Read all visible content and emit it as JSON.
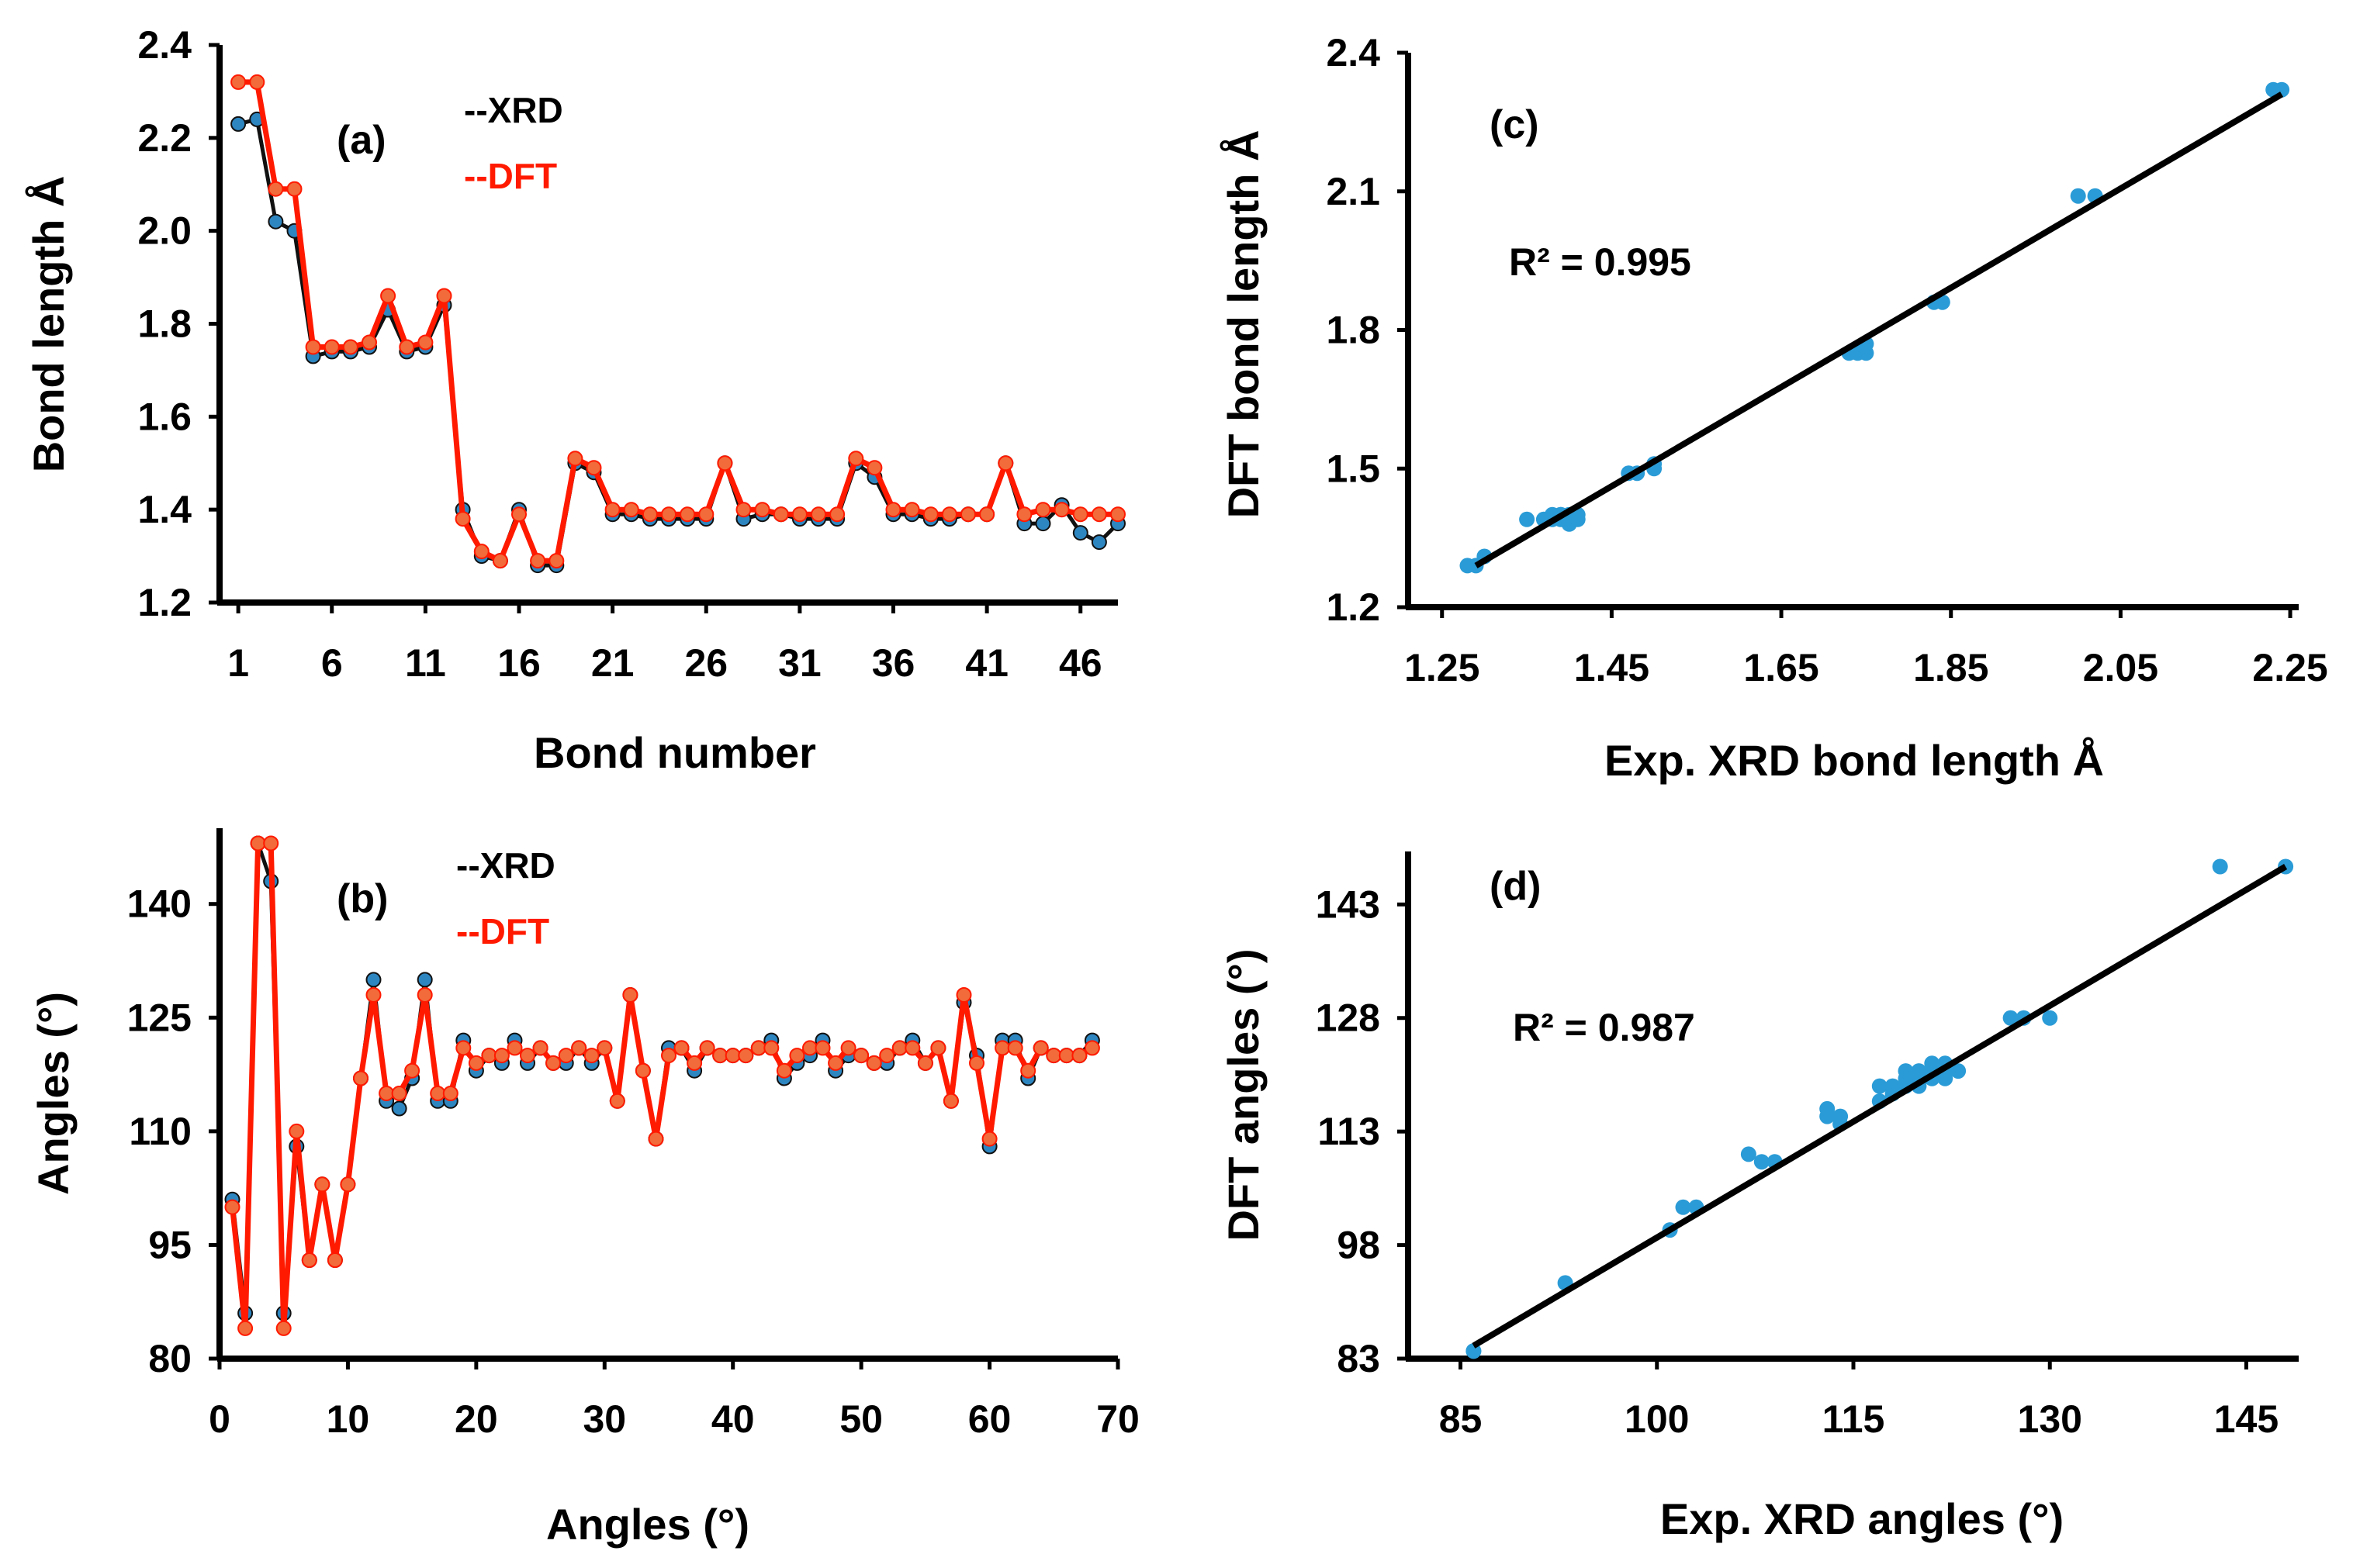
{
  "colors": {
    "xrd": "#111111",
    "dft": "#ff1a00",
    "marker_xrd": "#2e86c1",
    "marker_dft": "#f26b3a",
    "scatter": "#2a9bd6",
    "fit": "#000000"
  },
  "chart_data": [
    {
      "id": "a",
      "type": "line",
      "panel_label": "(a)",
      "xlabel": "Bond number",
      "ylabel": "Bond length Å",
      "ylim": [
        1.2,
        2.4
      ],
      "yticks": [
        "1.2",
        "1.4",
        "1.6",
        "1.8",
        "2.0",
        "2.2",
        "2.4"
      ],
      "xlim": [
        0,
        48
      ],
      "xticks": [
        "1",
        "6",
        "11",
        "16",
        "21",
        "26",
        "31",
        "36",
        "41",
        "46"
      ],
      "legend": [
        "--XRD",
        "--DFT"
      ],
      "series": [
        {
          "name": "XRD",
          "x": [
            1,
            2,
            3,
            4,
            5,
            6,
            7,
            8,
            9,
            10,
            11,
            12,
            13,
            14,
            15,
            16,
            17,
            18,
            19,
            20,
            21,
            22,
            23,
            24,
            25,
            26,
            27,
            28,
            29,
            30,
            31,
            32,
            33,
            34,
            35,
            36,
            37,
            38,
            39,
            40,
            41,
            42,
            43,
            44,
            45,
            46,
            47,
            48
          ],
          "values": [
            2.23,
            2.24,
            2.02,
            2.0,
            1.73,
            1.74,
            1.74,
            1.75,
            1.83,
            1.74,
            1.75,
            1.84,
            1.4,
            1.3,
            1.29,
            1.4,
            1.28,
            1.28,
            1.5,
            1.48,
            1.39,
            1.39,
            1.38,
            1.38,
            1.38,
            1.38,
            1.5,
            1.38,
            1.39,
            1.39,
            1.38,
            1.38,
            1.38,
            1.5,
            1.47,
            1.39,
            1.39,
            1.38,
            1.38,
            1.39,
            1.39,
            1.5,
            1.37,
            1.37,
            1.41,
            1.35,
            1.33,
            1.37
          ]
        },
        {
          "name": "DFT",
          "x": [
            1,
            2,
            3,
            4,
            5,
            6,
            7,
            8,
            9,
            10,
            11,
            12,
            13,
            14,
            15,
            16,
            17,
            18,
            19,
            20,
            21,
            22,
            23,
            24,
            25,
            26,
            27,
            28,
            29,
            30,
            31,
            32,
            33,
            34,
            35,
            36,
            37,
            38,
            39,
            40,
            41,
            42,
            43,
            44,
            45,
            46,
            47,
            48
          ],
          "values": [
            2.32,
            2.32,
            2.09,
            2.09,
            1.75,
            1.75,
            1.75,
            1.76,
            1.86,
            1.75,
            1.76,
            1.86,
            1.38,
            1.31,
            1.29,
            1.39,
            1.29,
            1.29,
            1.51,
            1.49,
            1.4,
            1.4,
            1.39,
            1.39,
            1.39,
            1.39,
            1.5,
            1.4,
            1.4,
            1.39,
            1.39,
            1.39,
            1.39,
            1.51,
            1.49,
            1.4,
            1.4,
            1.39,
            1.39,
            1.39,
            1.39,
            1.5,
            1.39,
            1.4,
            1.4,
            1.39,
            1.39,
            1.39
          ]
        }
      ]
    },
    {
      "id": "b",
      "type": "line",
      "panel_label": "(b)",
      "xlabel": "Angles (°)",
      "ylabel": "Angles (°)",
      "ylim": [
        80,
        150
      ],
      "yticks": [
        "80",
        "95",
        "110",
        "125",
        "140"
      ],
      "xlim": [
        0,
        70
      ],
      "xticks": [
        "0",
        "10",
        "20",
        "30",
        "40",
        "50",
        "60",
        "70"
      ],
      "legend": [
        "--XRD",
        "--DFT"
      ],
      "series": [
        {
          "name": "XRD",
          "x": [
            1,
            2,
            3,
            4,
            5,
            6,
            7,
            8,
            9,
            10,
            11,
            12,
            13,
            14,
            15,
            16,
            17,
            18,
            19,
            20,
            21,
            22,
            23,
            24,
            25,
            26,
            27,
            28,
            29,
            30,
            31,
            32,
            33,
            34,
            35,
            36,
            37,
            38,
            39,
            40,
            41,
            42,
            43,
            44,
            45,
            46,
            47,
            48,
            49,
            50,
            51,
            52,
            53,
            54,
            55,
            56,
            57,
            58,
            59,
            60,
            61,
            62,
            63,
            64,
            65,
            66,
            67,
            68
          ],
          "values": [
            101,
            86,
            148,
            143,
            86,
            108,
            93,
            103,
            93,
            103,
            117,
            130,
            114,
            113,
            117,
            130,
            114,
            114,
            122,
            118,
            120,
            119,
            122,
            119,
            121,
            119,
            119,
            121,
            119,
            121,
            114,
            128,
            118,
            109,
            121,
            121,
            118,
            121,
            120,
            120,
            120,
            121,
            122,
            117,
            119,
            120,
            122,
            118,
            120,
            120,
            119,
            119,
            121,
            122,
            119,
            121,
            114,
            127,
            120,
            108,
            122,
            122,
            117,
            121,
            120,
            120,
            120,
            122
          ]
        },
        {
          "name": "DFT",
          "x": [
            1,
            2,
            3,
            4,
            5,
            6,
            7,
            8,
            9,
            10,
            11,
            12,
            13,
            14,
            15,
            16,
            17,
            18,
            19,
            20,
            21,
            22,
            23,
            24,
            25,
            26,
            27,
            28,
            29,
            30,
            31,
            32,
            33,
            34,
            35,
            36,
            37,
            38,
            39,
            40,
            41,
            42,
            43,
            44,
            45,
            46,
            47,
            48,
            49,
            50,
            51,
            52,
            53,
            54,
            55,
            56,
            57,
            58,
            59,
            60,
            61,
            62,
            63,
            64,
            65,
            66,
            67,
            68
          ],
          "values": [
            100,
            84,
            148,
            148,
            84,
            110,
            93,
            103,
            93,
            103,
            117,
            128,
            115,
            115,
            118,
            128,
            115,
            115,
            121,
            119,
            120,
            120,
            121,
            120,
            121,
            119,
            120,
            121,
            120,
            121,
            114,
            128,
            118,
            109,
            120,
            121,
            119,
            121,
            120,
            120,
            120,
            121,
            121,
            118,
            120,
            121,
            121,
            119,
            121,
            120,
            119,
            120,
            121,
            121,
            119,
            121,
            114,
            128,
            119,
            109,
            121,
            121,
            118,
            121,
            120,
            120,
            120,
            121
          ]
        }
      ]
    },
    {
      "id": "c",
      "type": "scatter",
      "panel_label": "(c)",
      "xlabel": "Exp. XRD bond length Å",
      "ylabel": "DFT bond length Å",
      "annotation": "R² = 0.995",
      "xlim": [
        1.21,
        2.26
      ],
      "ylim": [
        1.2,
        2.4
      ],
      "xticks": [
        "1.25",
        "1.45",
        "1.65",
        "1.85",
        "2.05",
        "2.25"
      ],
      "yticks": [
        "1.2",
        "1.5",
        "1.8",
        "2.1",
        "2.4"
      ],
      "x": [
        1.28,
        1.29,
        1.3,
        1.35,
        1.37,
        1.38,
        1.38,
        1.39,
        1.39,
        1.39,
        1.4,
        1.4,
        1.4,
        1.4,
        1.41,
        1.41,
        1.47,
        1.48,
        1.5,
        1.5,
        1.73,
        1.74,
        1.74,
        1.75,
        1.75,
        1.83,
        1.84,
        2.0,
        2.02,
        2.23,
        2.24
      ],
      "y": [
        1.29,
        1.29,
        1.31,
        1.39,
        1.39,
        1.39,
        1.4,
        1.39,
        1.4,
        1.4,
        1.38,
        1.39,
        1.4,
        1.39,
        1.39,
        1.4,
        1.49,
        1.49,
        1.51,
        1.5,
        1.75,
        1.75,
        1.76,
        1.75,
        1.77,
        1.86,
        1.86,
        2.09,
        2.09,
        2.32,
        2.32
      ],
      "fit": {
        "x": [
          1.29,
          2.24
        ],
        "y": [
          1.29,
          2.31
        ]
      }
    },
    {
      "id": "d",
      "type": "scatter",
      "panel_label": "(d)",
      "xlabel": "Exp. XRD angles (°)",
      "ylabel": "DFT angles (°)",
      "annotation": "R² = 0.987",
      "xlim": [
        81,
        149
      ],
      "ylim": [
        83,
        150
      ],
      "xticks": [
        "85",
        "100",
        "115",
        "130",
        "145"
      ],
      "yticks": [
        "83",
        "98",
        "113",
        "128",
        "143"
      ],
      "x": [
        86,
        86,
        93,
        101,
        102,
        103,
        107,
        108,
        109,
        113,
        113,
        114,
        114,
        117,
        117,
        118,
        118,
        119,
        119,
        119,
        120,
        120,
        120,
        120,
        121,
        121,
        121,
        122,
        122,
        122,
        123,
        127,
        128,
        130,
        143,
        148
      ],
      "y": [
        84,
        84,
        93,
        100,
        103,
        103,
        110,
        109,
        109,
        115,
        116,
        115,
        114,
        117,
        119,
        118,
        119,
        119,
        120,
        121,
        120,
        119,
        120,
        121,
        120,
        121,
        122,
        121,
        122,
        120,
        121,
        128,
        128,
        128,
        148,
        148
      ],
      "fit": {
        "x": [
          86,
          148
        ],
        "y": [
          84.7,
          148
        ]
      }
    }
  ]
}
